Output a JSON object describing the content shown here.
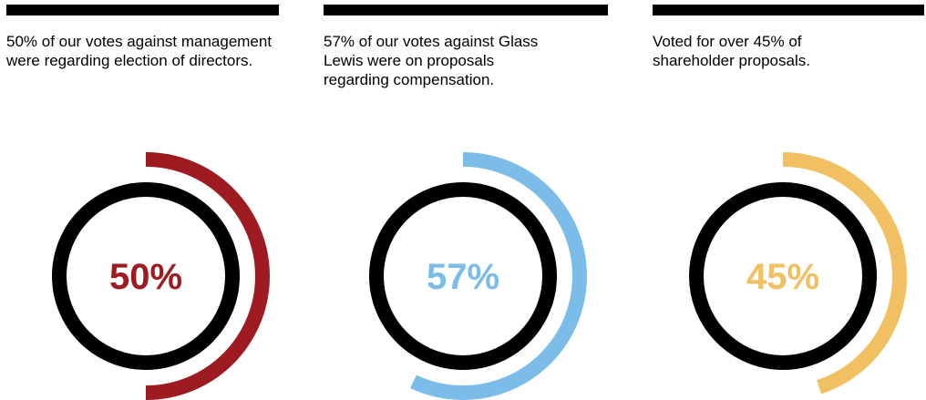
{
  "stats": [
    {
      "caption": "50% of our votes against management were regarding election of directors.",
      "percent_label": "50%",
      "value": 50,
      "color": "#9e1b22"
    },
    {
      "caption": "57% of our votes against Glass Lewis were on proposals regarding compensation.",
      "percent_label": "57%",
      "value": 57,
      "color": "#7bbce8"
    },
    {
      "caption": "Voted for over 45% of shareholder proposals.",
      "percent_label": "45%",
      "value": 45,
      "color": "#f1c062"
    }
  ]
}
